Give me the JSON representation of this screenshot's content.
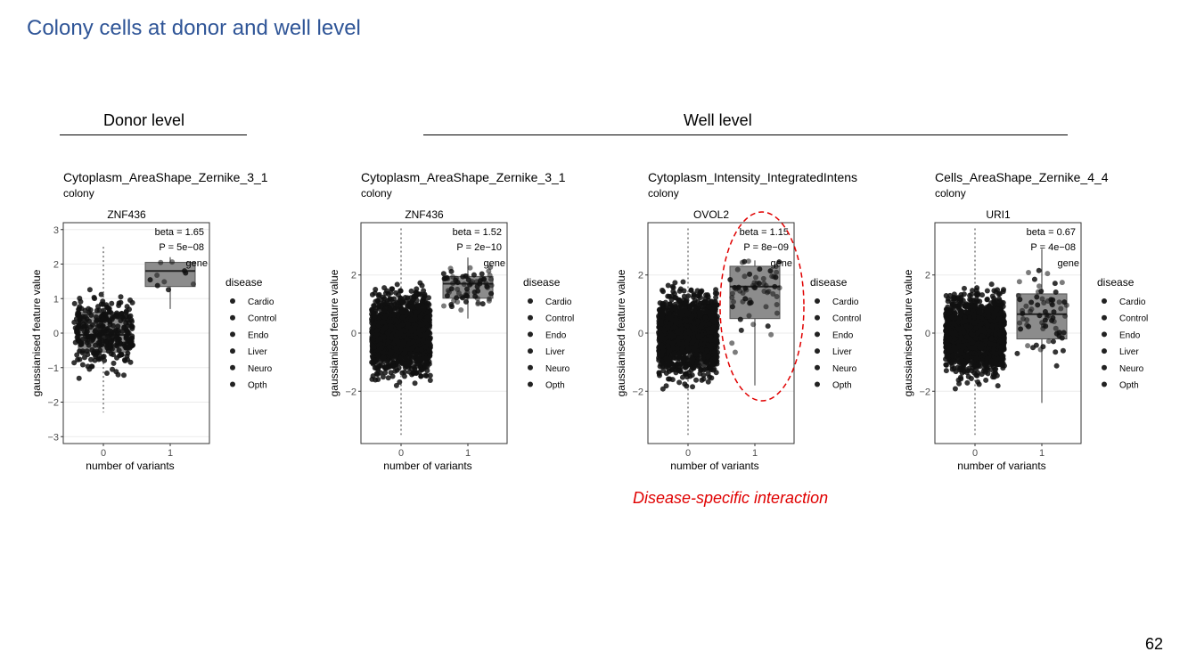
{
  "slide": {
    "title": "Colony cells at donor and well level",
    "donor_label": "Donor level",
    "well_label": "Well level",
    "caption": "Disease-specific interaction",
    "page_number": "62"
  },
  "panels": [
    {
      "feature": "Cytoplasm_AreaShape_Zernike_3_1",
      "level": "colony"
    },
    {
      "feature": "Cytoplasm_AreaShape_Zernike_3_1",
      "level": "colony"
    },
    {
      "feature": "Cytoplasm_Intensity_IntegratedIntens",
      "level": "colony"
    },
    {
      "feature": "Cells_AreaShape_Zernike_4_4",
      "level": "colony"
    }
  ],
  "colors": {
    "title": "#2f5597",
    "annotation": "#e00000",
    "points": "#111111",
    "box": "#808080"
  },
  "chart_data": [
    {
      "type": "box",
      "title": "ZNF436",
      "xlabel": "number of variants",
      "ylabel": "gaussianised feature value",
      "categories": [
        "0",
        "1"
      ],
      "ylim": [
        -3.2,
        3.2
      ],
      "yticks": [
        -3,
        -2,
        -1,
        0,
        1,
        2,
        3
      ],
      "boxes": [
        {
          "x": "0",
          "q1": -0.55,
          "median": -0.05,
          "q3": 0.6,
          "whisker_low": -2.3,
          "whisker_high": 2.5,
          "n_points": 320
        },
        {
          "x": "1",
          "q1": 1.35,
          "median": 1.8,
          "q3": 2.05,
          "whisker_low": 0.7,
          "whisker_high": 2.2,
          "n_points": 10
        }
      ],
      "annotation": {
        "beta": "beta = 1.65",
        "p": "P = 5e−08",
        "gene": "gene"
      },
      "legend": {
        "title": "disease",
        "entries": [
          "Cardio",
          "Control",
          "Endo",
          "Liver",
          "Neuro",
          "Opth"
        ]
      }
    },
    {
      "type": "box",
      "title": "ZNF436",
      "xlabel": "number of variants",
      "ylabel": "gaussianised feature value",
      "categories": [
        "0",
        "1"
      ],
      "ylim": [
        -3.8,
        3.8
      ],
      "yticks": [
        -2,
        0,
        2
      ],
      "boxes": [
        {
          "x": "0",
          "q1": -0.7,
          "median": -0.05,
          "q3": 0.6,
          "whisker_low": -3.5,
          "whisker_high": 3.6,
          "n_points": 1600
        },
        {
          "x": "1",
          "q1": 1.2,
          "median": 1.7,
          "q3": 1.95,
          "whisker_low": 0.5,
          "whisker_high": 2.6,
          "n_points": 70
        }
      ],
      "annotation": {
        "beta": "beta = 1.52",
        "p": "P = 2e−10",
        "gene": "gene"
      },
      "legend": {
        "title": "disease",
        "entries": [
          "Cardio",
          "Control",
          "Endo",
          "Liver",
          "Neuro",
          "Opth"
        ]
      }
    },
    {
      "type": "box",
      "title": "OVOL2",
      "xlabel": "number of variants",
      "ylabel": "gaussianised feature value",
      "categories": [
        "0",
        "1"
      ],
      "ylim": [
        -3.8,
        3.8
      ],
      "yticks": [
        -2,
        0,
        2
      ],
      "boxes": [
        {
          "x": "0",
          "q1": -0.7,
          "median": -0.05,
          "q3": 0.6,
          "whisker_low": -3.5,
          "whisker_high": 3.6,
          "n_points": 1600
        },
        {
          "x": "1",
          "q1": 0.5,
          "median": 1.6,
          "q3": 2.3,
          "whisker_low": -1.8,
          "whisker_high": 2.5,
          "n_points": 60
        }
      ],
      "annotation": {
        "beta": "beta = 1.15",
        "p": "P = 8e−09",
        "gene": "gene"
      },
      "legend": {
        "title": "disease",
        "entries": [
          "Cardio",
          "Control",
          "Endo",
          "Liver",
          "Neuro",
          "Opth"
        ]
      }
    },
    {
      "type": "box",
      "title": "URI1",
      "xlabel": "number of variants",
      "ylabel": "gaussianised feature value",
      "categories": [
        "0",
        "1"
      ],
      "ylim": [
        -3.8,
        3.8
      ],
      "yticks": [
        -2,
        0,
        2
      ],
      "boxes": [
        {
          "x": "0",
          "q1": -0.7,
          "median": -0.05,
          "q3": 0.6,
          "whisker_low": -3.5,
          "whisker_high": 3.6,
          "n_points": 1600
        },
        {
          "x": "1",
          "q1": -0.2,
          "median": 0.65,
          "q3": 1.35,
          "whisker_low": -2.4,
          "whisker_high": 2.9,
          "n_points": 70
        }
      ],
      "annotation": {
        "beta": "beta = 0.67",
        "p": "P = 4e−08",
        "gene": "gene"
      },
      "legend": {
        "title": "disease",
        "entries": [
          "Cardio",
          "Control",
          "Endo",
          "Liver",
          "Neuro",
          "Opth"
        ]
      }
    }
  ]
}
